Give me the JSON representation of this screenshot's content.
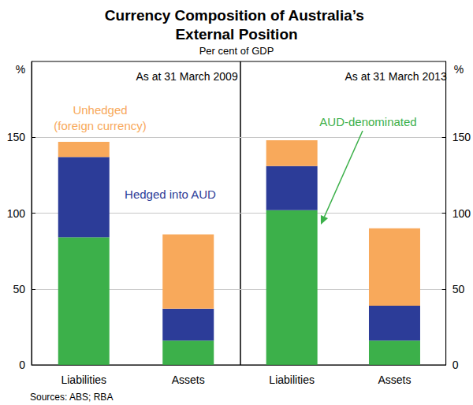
{
  "title": "Currency Composition of Australia’s External Position",
  "subtitle": "Per cent of GDP",
  "source": "Sources: ABS; RBA",
  "chart_data": [
    {
      "type": "bar",
      "title": "As at 31 March 2009",
      "ylabel": "%",
      "categories": [
        "Liabilities",
        "Assets"
      ],
      "series": [
        {
          "name": "AUD-denominated",
          "color": "#3cb04a",
          "values": [
            84,
            16
          ]
        },
        {
          "name": "Hedged into AUD",
          "color": "#2c3c98",
          "values": [
            53,
            21
          ]
        },
        {
          "name": "Unhedged\n(foreign currency)",
          "color": "#f8a95b",
          "values": [
            10,
            49
          ]
        }
      ],
      "annotations": [
        "Unhedged\n(foreign currency)",
        "Hedged into AUD"
      ],
      "ylim": [
        0,
        200
      ],
      "yticks": [
        0,
        50,
        100,
        150
      ],
      "grid": true,
      "stacked": true
    },
    {
      "type": "bar",
      "title": "As at 31 March 2013",
      "ylabel": "%",
      "categories": [
        "Liabilities",
        "Assets"
      ],
      "series": [
        {
          "name": "AUD-denominated",
          "color": "#3cb04a",
          "values": [
            102,
            16
          ]
        },
        {
          "name": "Hedged into AUD",
          "color": "#2c3c98",
          "values": [
            29,
            23
          ]
        },
        {
          "name": "Unhedged\n(foreign currency)",
          "color": "#f8a95b",
          "values": [
            17,
            51
          ]
        }
      ],
      "annotations": [
        "AUD-denominated"
      ],
      "ylim": [
        0,
        200
      ],
      "yticks": [
        0,
        50,
        100,
        150
      ],
      "grid": true,
      "stacked": true
    }
  ]
}
